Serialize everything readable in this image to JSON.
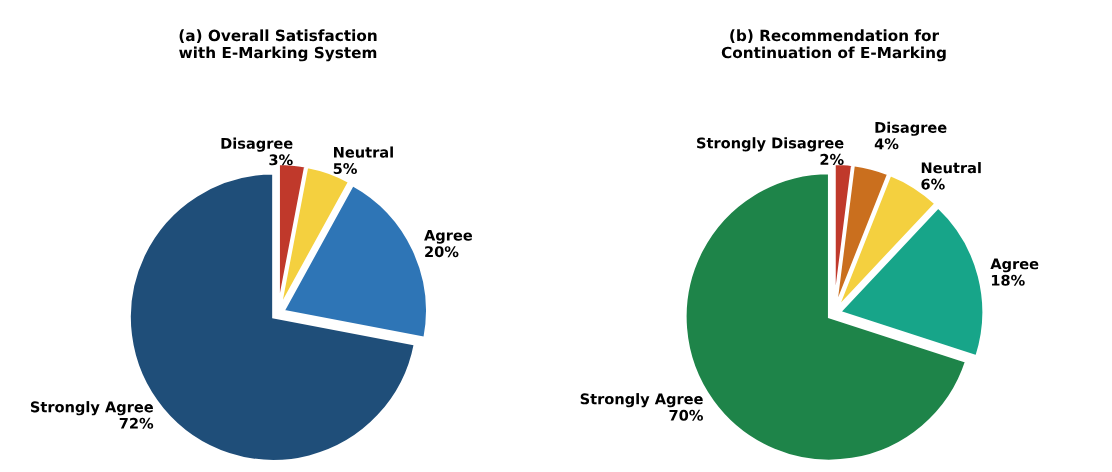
{
  "chart_data": [
    {
      "type": "pie",
      "title": "(a) Overall Satisfaction\nwith E-Marking System",
      "categories": [
        "Disagree",
        "Neutral",
        "Agree",
        "Strongly Agree"
      ],
      "values": [
        3,
        5,
        20,
        72
      ],
      "colors": [
        "#c0392b",
        "#f4d03f",
        "#2e75b6",
        "#1f4e79"
      ],
      "value_labels": [
        "3%",
        "5%",
        "20%",
        "72%"
      ]
    },
    {
      "type": "pie",
      "title": "(b) Recommendation for\nContinuation of E-Marking",
      "categories": [
        "Strongly Disagree",
        "Disagree",
        "Neutral",
        "Agree",
        "Strongly Agree"
      ],
      "values": [
        2,
        4,
        6,
        18,
        70
      ],
      "colors": [
        "#c0392b",
        "#ca6f1e",
        "#f4d03f",
        "#17a589",
        "#1e8449"
      ],
      "value_labels": [
        "2%",
        "4%",
        "6%",
        "18%",
        "70%"
      ]
    }
  ]
}
